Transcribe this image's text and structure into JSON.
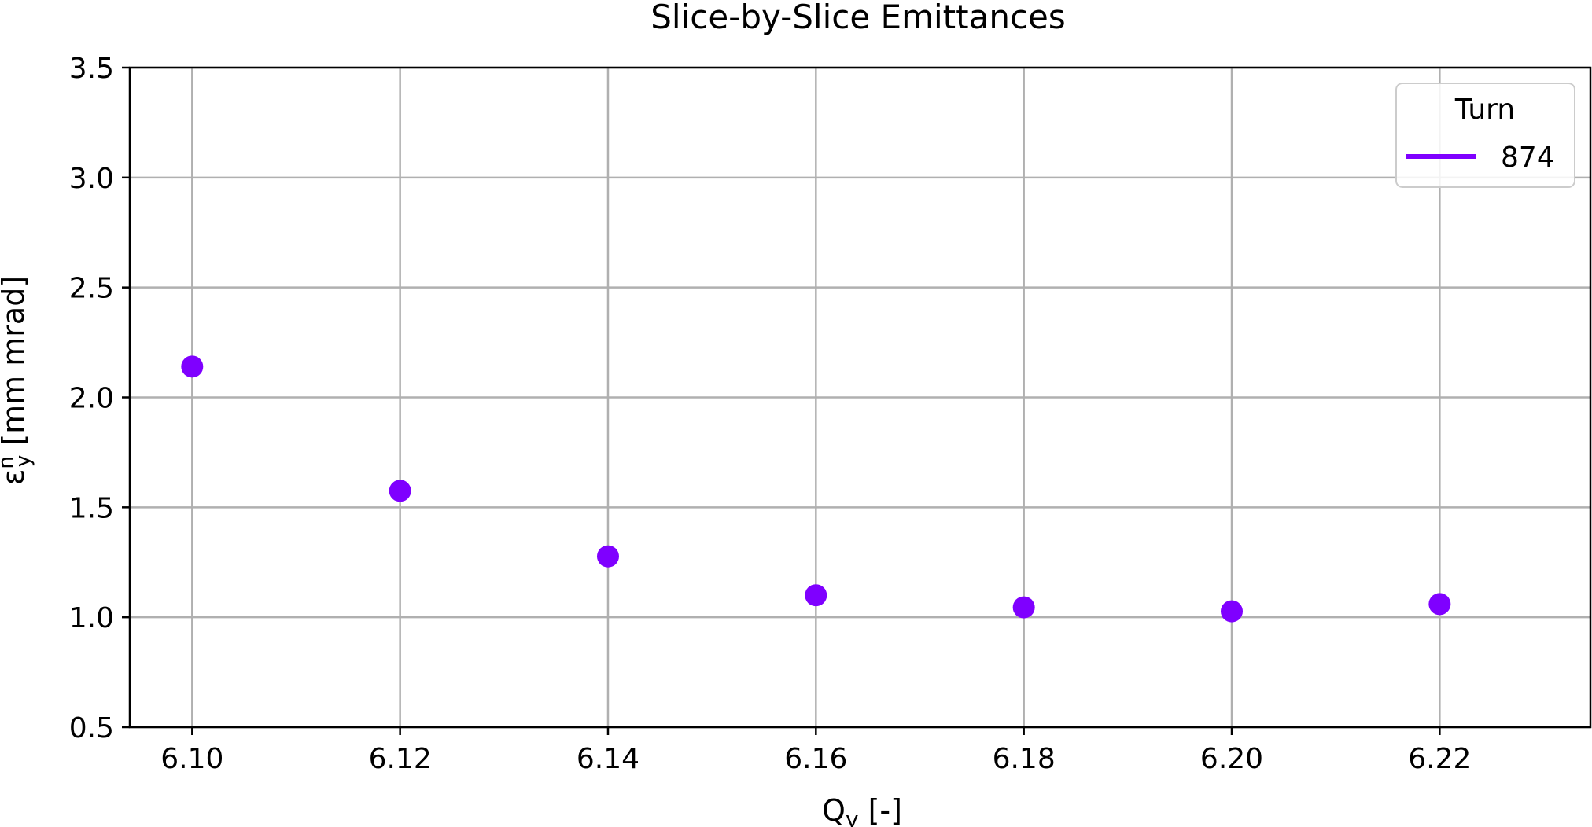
{
  "chart_data": {
    "type": "scatter",
    "title": "Slice-by-Slice Emittances",
    "xlabel": {
      "main": "Q",
      "sub": "y",
      "rest": " [-]"
    },
    "ylabel": {
      "main": "ε",
      "sup": "n",
      "sub": "y",
      "rest": " [mm mrad]"
    },
    "xlim": [
      6.094,
      6.2345
    ],
    "ylim": [
      0.5,
      3.5
    ],
    "x_ticks": [
      "6.10",
      "6.12",
      "6.14",
      "6.16",
      "6.18",
      "6.20",
      "6.22"
    ],
    "y_ticks": [
      "0.5",
      "1.0",
      "1.5",
      "2.0",
      "2.5",
      "3.0",
      "3.5"
    ],
    "grid": true,
    "legend": {
      "title": "Turn",
      "placement": "top-right"
    },
    "series": [
      {
        "name": "874",
        "color": "#7f00ff",
        "x": [
          6.1,
          6.12,
          6.14,
          6.16,
          6.18,
          6.2,
          6.22
        ],
        "y": [
          2.14,
          1.575,
          1.277,
          1.1,
          1.045,
          1.027,
          1.06
        ]
      }
    ]
  }
}
